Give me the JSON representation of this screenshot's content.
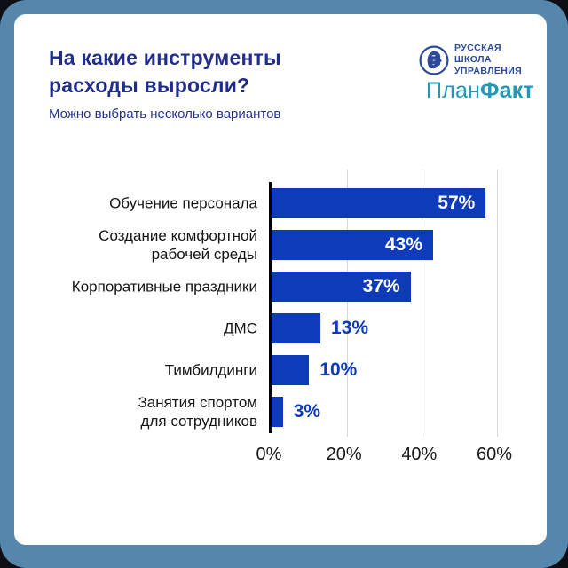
{
  "page": {
    "outer_background": "#0d0f14",
    "frame_color": "#5786ad",
    "card_color": "#ffffff"
  },
  "header": {
    "title": "На какие инструменты расходы выросли?",
    "subtitle": "Можно выбрать несколько вариантов",
    "title_color": "#202d8a"
  },
  "brand": {
    "rsu": {
      "icon": "rsu-classical-head-icon",
      "lines": [
        "РУССКАЯ",
        "ШКОЛА",
        "УПРАВЛЕНИЯ"
      ],
      "color": "#2b4a9e"
    },
    "planfakt": {
      "part1": "План",
      "part2": "Факт",
      "color": "#2198b4"
    }
  },
  "chart_data": {
    "type": "bar",
    "orientation": "horizontal",
    "title": "На какие инструменты расходы выросли?",
    "subtitle": "Можно выбрать несколько вариантов",
    "categories": [
      "Обучение персонала",
      "Создание комфортной рабочей среды",
      "Корпоративные праздники",
      "ДМС",
      "Тимбилдинги",
      "Занятия спортом для сотрудников"
    ],
    "category_lines": [
      [
        "Обучение персонала"
      ],
      [
        "Создание комфортной",
        "рабочей среды"
      ],
      [
        "Корпоративные праздники"
      ],
      [
        "ДМС"
      ],
      [
        "Тимбилдинги"
      ],
      [
        "Занятия спортом",
        "для сотрудников"
      ]
    ],
    "values": [
      57,
      43,
      37,
      13,
      10,
      3
    ],
    "value_labels": [
      "57%",
      "43%",
      "37%",
      "13%",
      "10%",
      "3%"
    ],
    "xlim": [
      0,
      60
    ],
    "xticks": [
      0,
      20,
      40,
      60
    ],
    "xtick_labels": [
      "0%",
      "20%",
      "40%",
      "60%"
    ],
    "grid": "vertical",
    "bar_color": "#0d3bba",
    "inside_label_threshold": 20,
    "inside_label_color": "#ffffff",
    "outside_label_color": "#0d3bba"
  }
}
